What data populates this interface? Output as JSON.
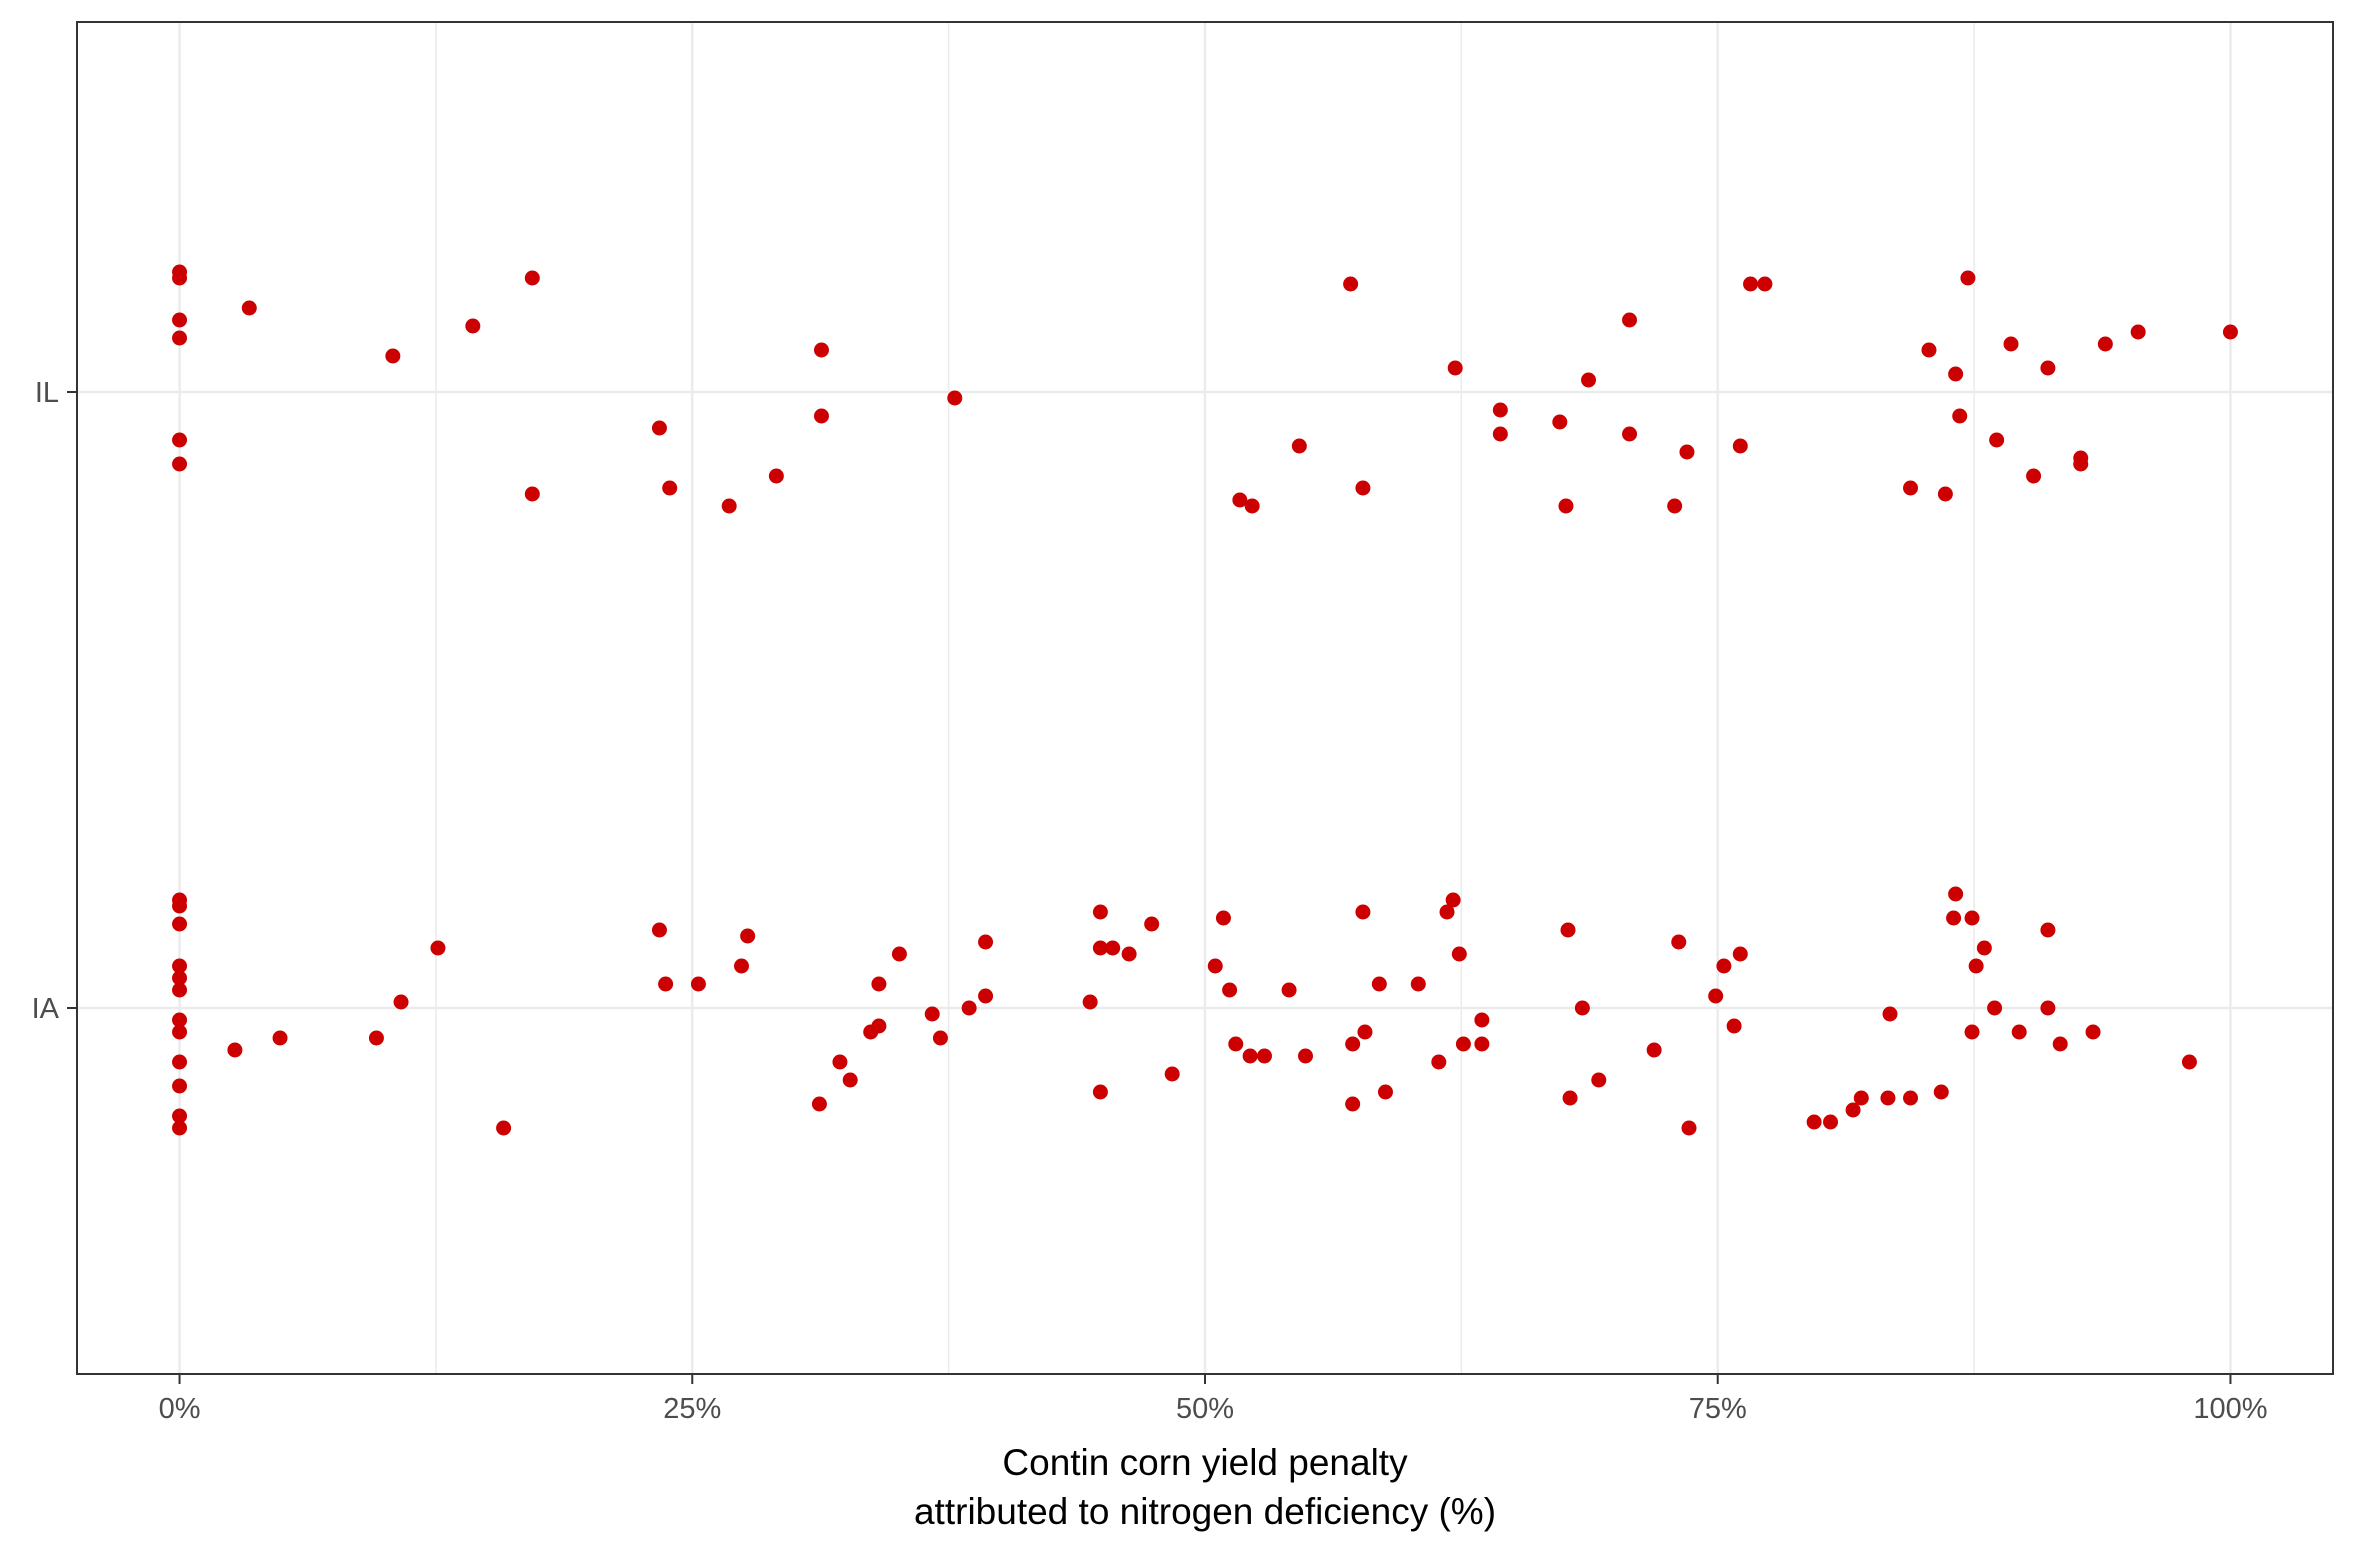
{
  "colors": {
    "point": "#cc0000",
    "grid": "#ebebeb",
    "panel_border": "#333333",
    "tick": "#333333"
  },
  "chart_data": {
    "type": "scatter",
    "xlabel": [
      "Contin corn yield penalty",
      "attributed to nitrogen deficiency (%)"
    ],
    "ylabel": "",
    "xlim": [
      -5,
      105
    ],
    "x_ticks": [
      {
        "value": 0,
        "label": "0%"
      },
      {
        "value": 25,
        "label": "25%"
      },
      {
        "value": 50,
        "label": "50%"
      },
      {
        "value": 75,
        "label": "75%"
      },
      {
        "value": 100,
        "label": "100%"
      }
    ],
    "categories": [
      "IL",
      "IA"
    ],
    "grid": true,
    "legend": "none",
    "series": [
      {
        "category": "IL",
        "points": [
          {
            "x": 0,
            "y": 0.2
          },
          {
            "x": 0,
            "y": 0.19
          },
          {
            "x": 0,
            "y": 0.12
          },
          {
            "x": 0,
            "y": 0.09
          },
          {
            "x": 0,
            "y": -0.08
          },
          {
            "x": 0,
            "y": -0.12
          },
          {
            "x": 3.4,
            "y": 0.14
          },
          {
            "x": 10.4,
            "y": 0.06
          },
          {
            "x": 14.3,
            "y": 0.11
          },
          {
            "x": 17.2,
            "y": 0.19
          },
          {
            "x": 17.2,
            "y": -0.17
          },
          {
            "x": 23.4,
            "y": -0.06
          },
          {
            "x": 23.9,
            "y": -0.16
          },
          {
            "x": 26.8,
            "y": -0.19
          },
          {
            "x": 29.1,
            "y": -0.14
          },
          {
            "x": 31.3,
            "y": 0.07
          },
          {
            "x": 31.3,
            "y": -0.04
          },
          {
            "x": 37.8,
            "y": -0.01
          },
          {
            "x": 51.7,
            "y": -0.18
          },
          {
            "x": 52.3,
            "y": -0.19
          },
          {
            "x": 54.6,
            "y": -0.09
          },
          {
            "x": 57.1,
            "y": 0.18
          },
          {
            "x": 57.7,
            "y": -0.16
          },
          {
            "x": 62.2,
            "y": 0.04
          },
          {
            "x": 64.4,
            "y": -0.03
          },
          {
            "x": 64.4,
            "y": -0.07
          },
          {
            "x": 67.3,
            "y": -0.05
          },
          {
            "x": 67.6,
            "y": -0.19
          },
          {
            "x": 68.7,
            "y": 0.02
          },
          {
            "x": 70.7,
            "y": 0.12
          },
          {
            "x": 70.7,
            "y": -0.07
          },
          {
            "x": 72.9,
            "y": -0.19
          },
          {
            "x": 73.5,
            "y": -0.1
          },
          {
            "x": 76.1,
            "y": -0.09
          },
          {
            "x": 76.6,
            "y": 0.18
          },
          {
            "x": 77.3,
            "y": 0.18
          },
          {
            "x": 84.4,
            "y": -0.16
          },
          {
            "x": 85.3,
            "y": 0.07
          },
          {
            "x": 86.1,
            "y": -0.17
          },
          {
            "x": 86.6,
            "y": 0.03
          },
          {
            "x": 86.8,
            "y": -0.04
          },
          {
            "x": 87.2,
            "y": 0.19
          },
          {
            "x": 88.6,
            "y": -0.08
          },
          {
            "x": 89.3,
            "y": 0.08
          },
          {
            "x": 90.4,
            "y": -0.14
          },
          {
            "x": 91.1,
            "y": 0.04
          },
          {
            "x": 92.7,
            "y": -0.11
          },
          {
            "x": 92.7,
            "y": -0.12
          },
          {
            "x": 93.9,
            "y": 0.08
          },
          {
            "x": 95.5,
            "y": 0.1
          },
          {
            "x": 100,
            "y": 0.1
          }
        ]
      },
      {
        "category": "IA",
        "points": [
          {
            "x": 0,
            "y": 0.18
          },
          {
            "x": 0,
            "y": 0.17
          },
          {
            "x": 0,
            "y": 0.14
          },
          {
            "x": 0,
            "y": 0.07
          },
          {
            "x": 0,
            "y": 0.05
          },
          {
            "x": 0,
            "y": 0.03
          },
          {
            "x": 0,
            "y": -0.02
          },
          {
            "x": 0,
            "y": -0.04
          },
          {
            "x": 0,
            "y": -0.09
          },
          {
            "x": 0,
            "y": -0.13
          },
          {
            "x": 0,
            "y": -0.18
          },
          {
            "x": 0,
            "y": -0.2
          },
          {
            "x": 2.7,
            "y": -0.07
          },
          {
            "x": 4.9,
            "y": -0.05
          },
          {
            "x": 9.6,
            "y": -0.05
          },
          {
            "x": 10.8,
            "y": 0.01
          },
          {
            "x": 12.6,
            "y": 0.1
          },
          {
            "x": 15.8,
            "y": -0.2
          },
          {
            "x": 23.4,
            "y": 0.13
          },
          {
            "x": 23.7,
            "y": 0.04
          },
          {
            "x": 25.3,
            "y": 0.04
          },
          {
            "x": 27.4,
            "y": 0.07
          },
          {
            "x": 27.7,
            "y": 0.12
          },
          {
            "x": 31.2,
            "y": -0.16
          },
          {
            "x": 32.2,
            "y": -0.09
          },
          {
            "x": 32.7,
            "y": -0.12
          },
          {
            "x": 33.7,
            "y": -0.04
          },
          {
            "x": 34.1,
            "y": 0.04
          },
          {
            "x": 34.1,
            "y": -0.03
          },
          {
            "x": 35.1,
            "y": 0.09
          },
          {
            "x": 36.7,
            "y": -0.01
          },
          {
            "x": 37.1,
            "y": -0.05
          },
          {
            "x": 38.5,
            "y": 0.0
          },
          {
            "x": 39.3,
            "y": 0.11
          },
          {
            "x": 39.3,
            "y": 0.02
          },
          {
            "x": 44.4,
            "y": 0.01
          },
          {
            "x": 44.9,
            "y": 0.16
          },
          {
            "x": 44.9,
            "y": 0.1
          },
          {
            "x": 44.9,
            "y": -0.14
          },
          {
            "x": 45.5,
            "y": 0.1
          },
          {
            "x": 46.3,
            "y": 0.09
          },
          {
            "x": 47.4,
            "y": 0.14
          },
          {
            "x": 48.4,
            "y": -0.11
          },
          {
            "x": 50.5,
            "y": 0.07
          },
          {
            "x": 50.9,
            "y": 0.15
          },
          {
            "x": 51.2,
            "y": 0.03
          },
          {
            "x": 51.5,
            "y": -0.06
          },
          {
            "x": 52.2,
            "y": -0.08
          },
          {
            "x": 52.9,
            "y": -0.08
          },
          {
            "x": 54.1,
            "y": 0.03
          },
          {
            "x": 54.9,
            "y": -0.08
          },
          {
            "x": 57.2,
            "y": -0.16
          },
          {
            "x": 57.2,
            "y": -0.06
          },
          {
            "x": 57.7,
            "y": 0.16
          },
          {
            "x": 57.8,
            "y": -0.04
          },
          {
            "x": 58.5,
            "y": 0.04
          },
          {
            "x": 58.8,
            "y": -0.14
          },
          {
            "x": 60.4,
            "y": 0.04
          },
          {
            "x": 61.4,
            "y": -0.09
          },
          {
            "x": 61.8,
            "y": 0.16
          },
          {
            "x": 62.1,
            "y": 0.18
          },
          {
            "x": 62.4,
            "y": 0.09
          },
          {
            "x": 62.6,
            "y": -0.06
          },
          {
            "x": 63.5,
            "y": -0.02
          },
          {
            "x": 63.5,
            "y": -0.06
          },
          {
            "x": 67.7,
            "y": 0.13
          },
          {
            "x": 67.8,
            "y": -0.15
          },
          {
            "x": 68.4,
            "y": 0.0
          },
          {
            "x": 69.2,
            "y": -0.12
          },
          {
            "x": 71.9,
            "y": -0.07
          },
          {
            "x": 73.1,
            "y": 0.11
          },
          {
            "x": 73.6,
            "y": -0.2
          },
          {
            "x": 74.9,
            "y": 0.02
          },
          {
            "x": 75.3,
            "y": 0.07
          },
          {
            "x": 75.8,
            "y": -0.03
          },
          {
            "x": 76.1,
            "y": 0.09
          },
          {
            "x": 79.7,
            "y": -0.19
          },
          {
            "x": 80.5,
            "y": -0.19
          },
          {
            "x": 81.6,
            "y": -0.17
          },
          {
            "x": 82.0,
            "y": -0.15
          },
          {
            "x": 83.3,
            "y": -0.15
          },
          {
            "x": 83.4,
            "y": -0.01
          },
          {
            "x": 84.4,
            "y": -0.15
          },
          {
            "x": 85.9,
            "y": -0.14
          },
          {
            "x": 86.5,
            "y": 0.15
          },
          {
            "x": 86.6,
            "y": 0.19
          },
          {
            "x": 87.4,
            "y": 0.15
          },
          {
            "x": 87.4,
            "y": -0.04
          },
          {
            "x": 87.6,
            "y": 0.07
          },
          {
            "x": 88.0,
            "y": 0.1
          },
          {
            "x": 88.5,
            "y": 0.0
          },
          {
            "x": 89.7,
            "y": -0.04
          },
          {
            "x": 91.1,
            "y": 0.13
          },
          {
            "x": 91.1,
            "y": 0.0
          },
          {
            "x": 91.7,
            "y": -0.06
          },
          {
            "x": 93.3,
            "y": -0.04
          },
          {
            "x": 98.0,
            "y": -0.09
          }
        ]
      }
    ]
  }
}
